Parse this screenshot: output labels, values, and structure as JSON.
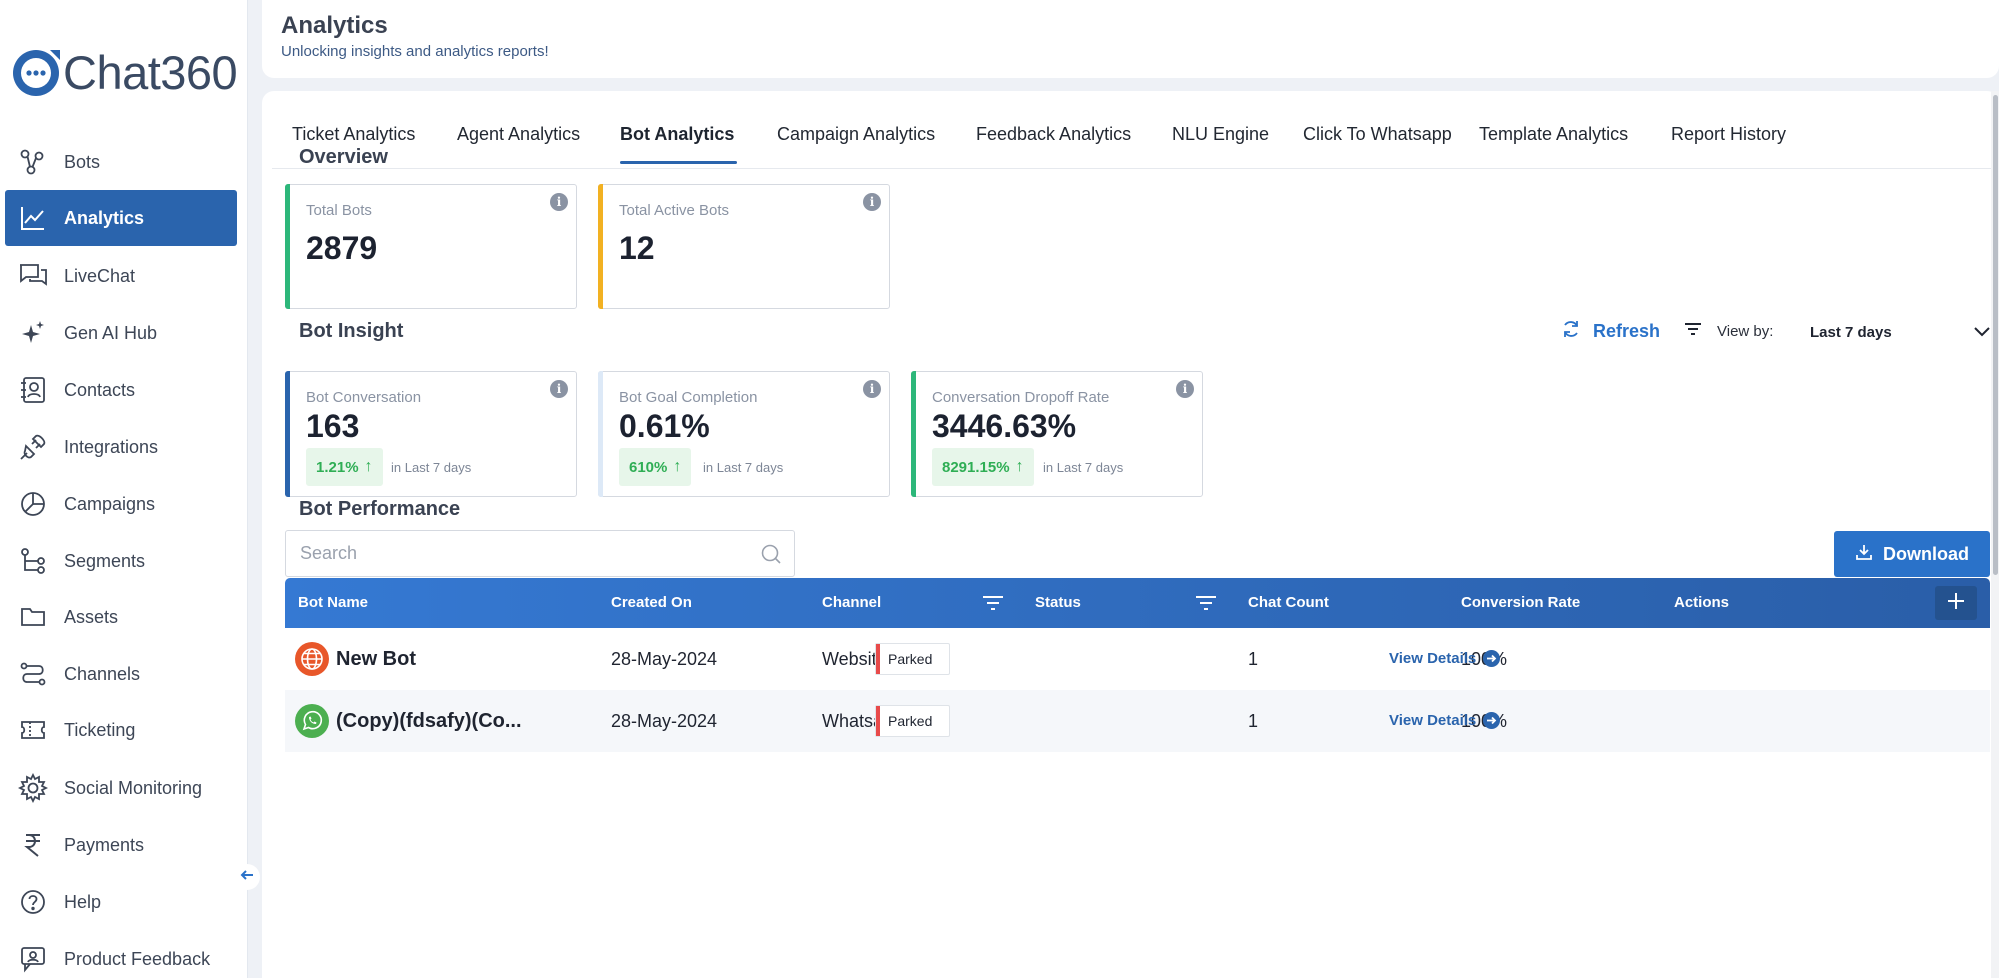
{
  "app": {
    "logo_text": "Chat360"
  },
  "sidebar": {
    "items": [
      {
        "label": "Bots",
        "icon": "bots-icon"
      },
      {
        "label": "Analytics",
        "icon": "analytics-icon",
        "active": true
      },
      {
        "label": "LiveChat",
        "icon": "livechat-icon"
      },
      {
        "label": "Gen AI Hub",
        "icon": "sparkle-icon"
      },
      {
        "label": "Contacts",
        "icon": "contacts-icon"
      },
      {
        "label": "Integrations",
        "icon": "plug-icon"
      },
      {
        "label": "Campaigns",
        "icon": "pie-chart-icon"
      },
      {
        "label": "Segments",
        "icon": "segments-icon"
      },
      {
        "label": "Assets",
        "icon": "folder-icon"
      },
      {
        "label": "Channels",
        "icon": "channels-icon"
      },
      {
        "label": "Ticketing",
        "icon": "ticket-icon"
      },
      {
        "label": "Social Monitoring",
        "icon": "gear-icon"
      },
      {
        "label": "Payments",
        "icon": "rupee-icon"
      },
      {
        "label": "Help",
        "icon": "help-icon"
      },
      {
        "label": "Product Feedback",
        "icon": "feedback-icon"
      }
    ]
  },
  "header": {
    "title": "Analytics",
    "subtitle": "Unlocking insights and analytics reports!"
  },
  "tabs": [
    {
      "label": "Ticket Analytics"
    },
    {
      "label": "Agent Analytics"
    },
    {
      "label": "Bot Analytics",
      "active": true
    },
    {
      "label": "Campaign Analytics"
    },
    {
      "label": "Feedback Analytics"
    },
    {
      "label": "NLU Engine"
    },
    {
      "label": "Click To Whatsapp"
    },
    {
      "label": "Template Analytics"
    },
    {
      "label": "Report History"
    }
  ],
  "overview": {
    "title": "Overview",
    "cards": [
      {
        "label": "Total Bots",
        "value": "2879",
        "accent": "#2db77a"
      },
      {
        "label": "Total Active Bots",
        "value": "12",
        "accent": "#f2b122"
      }
    ]
  },
  "insight": {
    "title": "Bot Insight",
    "refresh_label": "Refresh",
    "viewby_label": "View by:",
    "viewby_value": "Last 7 days",
    "cards": [
      {
        "label": "Bot Conversation",
        "value": "163",
        "trend": "1.21%",
        "note": "in Last 7 days",
        "accent": "#2a64ad"
      },
      {
        "label": "Bot Goal Completion",
        "value": "0.61%",
        "trend": "610%",
        "note": "in Last 7 days",
        "accent": "#dde9f7"
      },
      {
        "label": "Conversation Dropoff Rate",
        "value": "3446.63%",
        "trend": "8291.15%",
        "note": "in Last 7 days",
        "accent": "#2db77a"
      }
    ]
  },
  "performance": {
    "title": "Bot Performance",
    "search_placeholder": "Search",
    "download_label": "Download",
    "columns": [
      "Bot Name",
      "Created On",
      "Channel",
      "Status",
      "Chat Count",
      "Conversion Rate",
      "Actions"
    ],
    "rows": [
      {
        "name": "New Bot",
        "created": "28-May-2024",
        "channel": "Website",
        "status": "Parked",
        "chat_count": "1",
        "conversion": "100%",
        "action": "View Details",
        "icon": "globe-icon",
        "icon_color": "#e8572a"
      },
      {
        "name": "(Copy)(fdsafy)(Co...",
        "created": "28-May-2024",
        "channel": "Whatsapp",
        "status": "Parked",
        "chat_count": "1",
        "conversion": "100%",
        "action": "View Details",
        "icon": "whatsapp-icon",
        "icon_color": "#4caf50"
      }
    ]
  },
  "colors": {
    "primary": "#2a64ad",
    "accent_blue": "#2a72c9",
    "success": "#2fae55",
    "danger": "#e84a4a"
  }
}
